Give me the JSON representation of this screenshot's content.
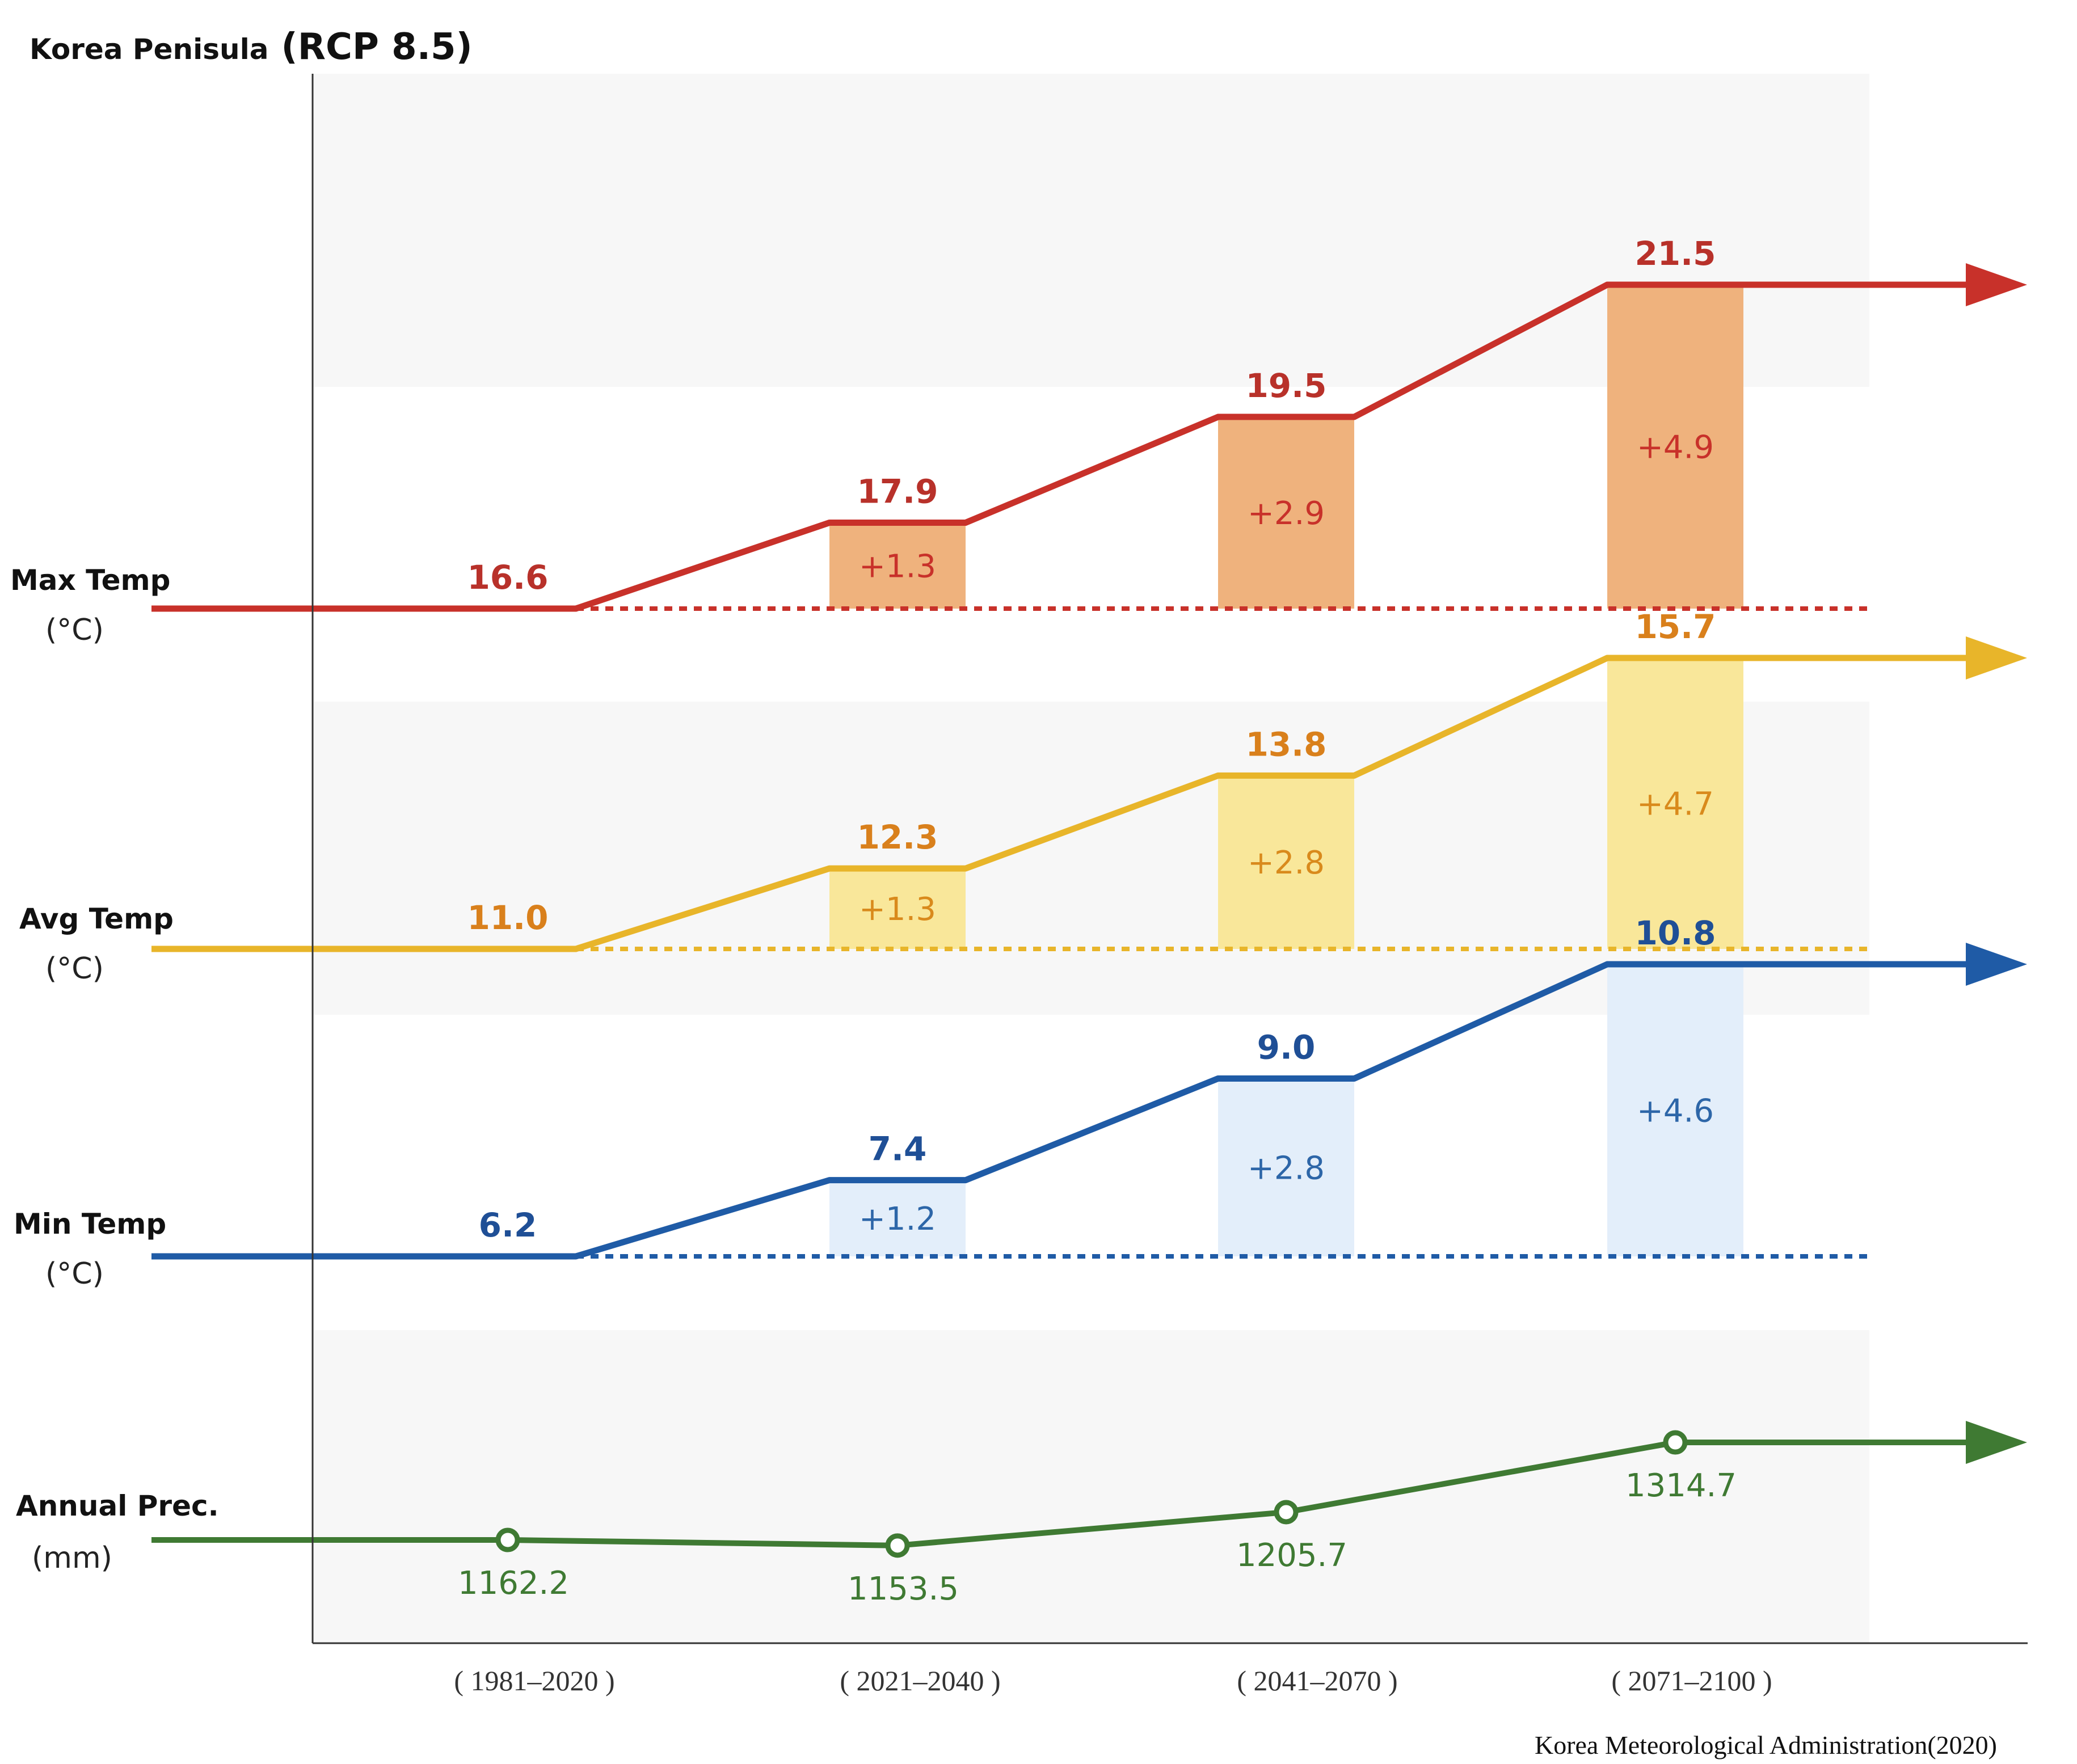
{
  "chart_data": {
    "type": "line",
    "title": "Korea Penisula",
    "subtitle": "(RCP 8.5)",
    "source": "Korea Meteorological Administration(2020)",
    "categories": [
      "( 1981–2020 )",
      "( 2021–2040 )",
      "( 2041–2070 )",
      "( 2071–2100 )"
    ],
    "series": [
      {
        "id": "max",
        "name": "Max Temp",
        "unit": "(°C)",
        "color": "#c8312a",
        "fill": "#efb27d",
        "delta_color": "#c8312a",
        "label_color": "#b8312a",
        "values": [
          16.6,
          17.9,
          19.5,
          21.5
        ],
        "value_labels": [
          "16.6",
          "17.9",
          "19.5",
          "21.5"
        ],
        "deltas": [
          "+1.3",
          "+2.9",
          "+4.9"
        ]
      },
      {
        "id": "avg",
        "name": "Avg Temp",
        "unit": "(°C)",
        "color": "#e8b52a",
        "fill": "#f9e79a",
        "delta_color": "#d98a1c",
        "label_color": "#d9801c",
        "values": [
          11.0,
          12.3,
          13.8,
          15.7
        ],
        "value_labels": [
          "11.0",
          "12.3",
          "13.8",
          "15.7"
        ],
        "deltas": [
          "+1.3",
          "+2.8",
          "+4.7"
        ]
      },
      {
        "id": "min",
        "name": "Min Temp",
        "unit": "(°C)",
        "color": "#1f5ba6",
        "fill": "#e3eefa",
        "delta_color": "#2d66a8",
        "label_color": "#1f4f96",
        "values": [
          6.2,
          7.4,
          9.0,
          10.8
        ],
        "value_labels": [
          "6.2",
          "7.4",
          "9.0",
          "10.8"
        ],
        "deltas": [
          "+1.2",
          "+2.8",
          "+4.6"
        ]
      },
      {
        "id": "prec",
        "name": "Annual Prec.",
        "unit": "(mm)",
        "color": "#3f7a33",
        "label_color": "#3f7a33",
        "values": [
          1162.2,
          1153.5,
          1205.7,
          1314.7
        ],
        "value_labels": [
          "1162.2",
          "1153.5",
          "1205.7",
          "1314.7"
        ]
      }
    ]
  }
}
